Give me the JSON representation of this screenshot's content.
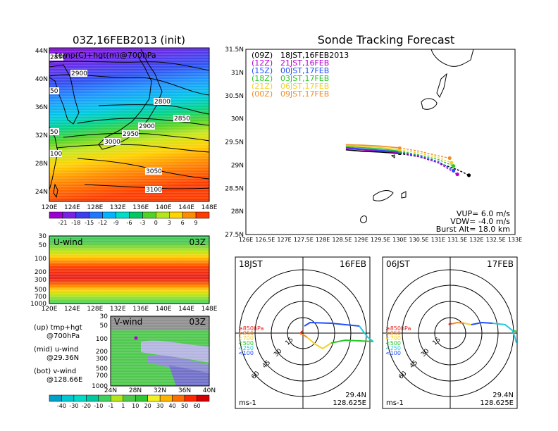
{
  "titles": {
    "left": "03Z,16FEB2013 (init)",
    "right": "Sonde Tracking Forecast"
  },
  "map_left": {
    "subtitle": "temp(C)+hgt(m)@700hPa",
    "lat_labels": [
      "44N",
      "40N",
      "36N",
      "32N",
      "28N",
      "24N"
    ],
    "lon_labels": [
      "120E",
      "124E",
      "128E",
      "132E",
      "136E",
      "140E",
      "144E",
      "148E"
    ],
    "contour_labels": [
      "2850",
      "2900",
      "2800",
      "2850",
      "2900",
      "2950",
      "3000",
      "3050",
      "3100",
      "2850",
      "50",
      "50",
      "100"
    ],
    "colorbar_labels": [
      "-21",
      "-18",
      "-15",
      "-12",
      "-9",
      "-6",
      "-3",
      "0",
      "3",
      "6",
      "9"
    ],
    "colorbar_colors": [
      "#9a00d0",
      "#7a1fe6",
      "#3c3cf0",
      "#1e78ff",
      "#00b4ff",
      "#00dcc8",
      "#00c864",
      "#50d228",
      "#b4e61e",
      "#ffd200",
      "#ff8c00",
      "#ff3c00"
    ]
  },
  "uwind": {
    "title": "U-wind",
    "time": "03Z",
    "y_labels": [
      "30",
      "50",
      "100",
      "200",
      "300",
      "500",
      "700",
      "1000"
    ],
    "x_labels": [
      "120E",
      "124E",
      "128E",
      "132E",
      "136E",
      "140E",
      "144E",
      "148E"
    ]
  },
  "vwind": {
    "title": "V-wind",
    "time": "03Z",
    "y_labels": [
      "30",
      "50",
      "100",
      "200",
      "300",
      "500",
      "700",
      "1000"
    ],
    "x_labels": [
      "24N",
      "28N",
      "32N",
      "36N",
      "40N"
    ]
  },
  "legend_left": {
    "up": "(up) tmp+hgt",
    "up2": "@700hPa",
    "mid": "(mid) u-wind",
    "mid2": "@29.36N",
    "bot": "(bot) v-wind",
    "bot2": "@128.66E"
  },
  "wind_colorbar": {
    "labels": [
      "-40",
      "-30",
      "-20",
      "-10",
      "-1",
      "1",
      "10",
      "20",
      "30",
      "40",
      "50",
      "60"
    ],
    "colors": [
      "#00a0c8",
      "#00c8d2",
      "#00dcc8",
      "#00c8a0",
      "#40d060",
      "#b4e61e",
      "#50c850",
      "#30c830",
      "#f0f028",
      "#ffb400",
      "#ff6e00",
      "#ff2800",
      "#d20000"
    ]
  },
  "tracking": {
    "lat_labels": [
      "31.5N",
      "31N",
      "30.5N",
      "30N",
      "29.5N",
      "29N",
      "28.5N",
      "28N",
      "27.5N"
    ],
    "lon_labels": [
      "126E",
      "126.5E",
      "127E",
      "127.5E",
      "128E",
      "128.5E",
      "129E",
      "129.5E",
      "130E",
      "130.5E",
      "131E",
      "131.5E",
      "132E",
      "132.5E",
      "133E"
    ],
    "launches": [
      {
        "code": "(09Z)",
        "time": "18JST,16FEB2013",
        "color": "#000000"
      },
      {
        "code": "(12Z)",
        "time": "21JST,16FEB",
        "color": "#b400d2"
      },
      {
        "code": "(15Z)",
        "time": "00JST,17FEB",
        "color": "#1e50ff"
      },
      {
        "code": "(18Z)",
        "time": "03JST,17FEB",
        "color": "#28c828"
      },
      {
        "code": "(21Z)",
        "time": "06JST,17FEB",
        "color": "#f0d228"
      },
      {
        "code": "(00Z)",
        "time": "09JST,17FEB",
        "color": "#f08c28"
      }
    ],
    "vup": "VUP= 6.0 m/s",
    "vdw": "VDW= -4.0 m/s",
    "burst": "Burst Alt= 18.0 km"
  },
  "hodo1": {
    "time": "18JST",
    "date": "16FEB",
    "lat": "29.4N",
    "lon": "128.625E",
    "unit": "ms-1",
    "rings": [
      "15",
      "30",
      "45",
      "60"
    ],
    "legend": [
      {
        "label": "≥850hPa",
        "color": "#e61e1e"
      },
      {
        "label": "<850",
        "color": "#f08c28"
      },
      {
        "label": "<700",
        "color": "#f0d228"
      },
      {
        "label": "<500",
        "color": "#28c828"
      },
      {
        "label": "<250",
        "color": "#28c8dc"
      },
      {
        "label": "<100",
        "color": "#1e50ff"
      }
    ]
  },
  "hodo2": {
    "time": "06JST",
    "date": "17FEB",
    "lat": "29.4N",
    "lon": "128.625E",
    "unit": "ms-1",
    "rings": [
      "15",
      "30",
      "45",
      "60"
    ],
    "legend": [
      {
        "label": "≥850hPa",
        "color": "#e61e1e"
      },
      {
        "label": "<850",
        "color": "#f08c28"
      },
      {
        "label": "<700",
        "color": "#f0d228"
      },
      {
        "label": "<500",
        "color": "#28c828"
      },
      {
        "label": "<250",
        "color": "#28c8dc"
      },
      {
        "label": "<100",
        "color": "#1e50ff"
      }
    ]
  },
  "chart_data": [
    {
      "type": "heatmap",
      "title": "03Z,16FEB2013 (init)",
      "subtitle": "temp(C)+hgt(m)@700hPa",
      "x_range": [
        "120E",
        "148E"
      ],
      "y_range": [
        "24N",
        "44N"
      ],
      "colorbar": [
        -21,
        -18,
        -15,
        -12,
        -9,
        -6,
        -3,
        0,
        3,
        6,
        9
      ],
      "contour_levels_m": [
        2800,
        2850,
        2900,
        2950,
        3000,
        3050,
        3100
      ]
    },
    {
      "type": "heatmap",
      "title": "U-wind",
      "x_range": [
        "120E",
        "148E"
      ],
      "y_ticks_hPa": [
        30,
        50,
        100,
        200,
        300,
        500,
        700,
        1000
      ]
    },
    {
      "type": "heatmap",
      "title": "V-wind",
      "x_range": [
        "24N",
        "40N"
      ],
      "y_ticks_hPa": [
        30,
        50,
        100,
        200,
        300,
        500,
        700,
        1000
      ],
      "colorbar": [
        -40,
        -30,
        -20,
        -10,
        -1,
        1,
        10,
        20,
        30,
        40,
        50,
        60
      ]
    },
    {
      "type": "line",
      "title": "Sonde Tracking Forecast",
      "xlim": [
        126,
        133
      ],
      "ylim": [
        27.5,
        31.5
      ],
      "series": [
        {
          "name": "(09Z) 18JST,16FEB2013",
          "lon": [
            128.6,
            129.0,
            129.5,
            130.0,
            130.5,
            131.0,
            131.5,
            131.8
          ],
          "lat": [
            29.33,
            29.3,
            29.28,
            29.25,
            29.18,
            29.05,
            28.9,
            28.78
          ]
        },
        {
          "name": "(12Z) 21JST,16FEB",
          "lon": [
            128.6,
            129.0,
            129.5,
            130.0,
            130.5,
            131.0,
            131.5
          ],
          "lat": [
            29.36,
            29.33,
            29.3,
            29.27,
            29.18,
            29.05,
            28.8
          ]
        },
        {
          "name": "(15Z) 00JST,17FEB",
          "lon": [
            128.6,
            129.0,
            129.5,
            130.0,
            130.5,
            131.0,
            131.4
          ],
          "lat": [
            29.38,
            29.35,
            29.32,
            29.28,
            29.2,
            29.08,
            28.88
          ]
        },
        {
          "name": "(18Z) 03JST,17FEB",
          "lon": [
            128.6,
            129.0,
            129.5,
            130.0,
            130.5,
            131.0,
            131.4
          ],
          "lat": [
            29.4,
            29.38,
            29.35,
            29.3,
            29.22,
            29.12,
            28.98
          ]
        },
        {
          "name": "(21Z) 06JST,17FEB",
          "lon": [
            128.6,
            129.0,
            129.5,
            130.0,
            130.5,
            131.0,
            131.35
          ],
          "lat": [
            29.42,
            29.4,
            29.38,
            29.33,
            29.26,
            29.16,
            29.05
          ]
        },
        {
          "name": "(00Z) 09JST,17FEB",
          "lon": [
            128.6,
            129.0,
            129.5,
            130.0,
            130.5,
            131.0,
            131.3
          ],
          "lat": [
            29.44,
            29.43,
            29.41,
            29.37,
            29.3,
            29.2,
            29.15
          ]
        }
      ]
    }
  ]
}
